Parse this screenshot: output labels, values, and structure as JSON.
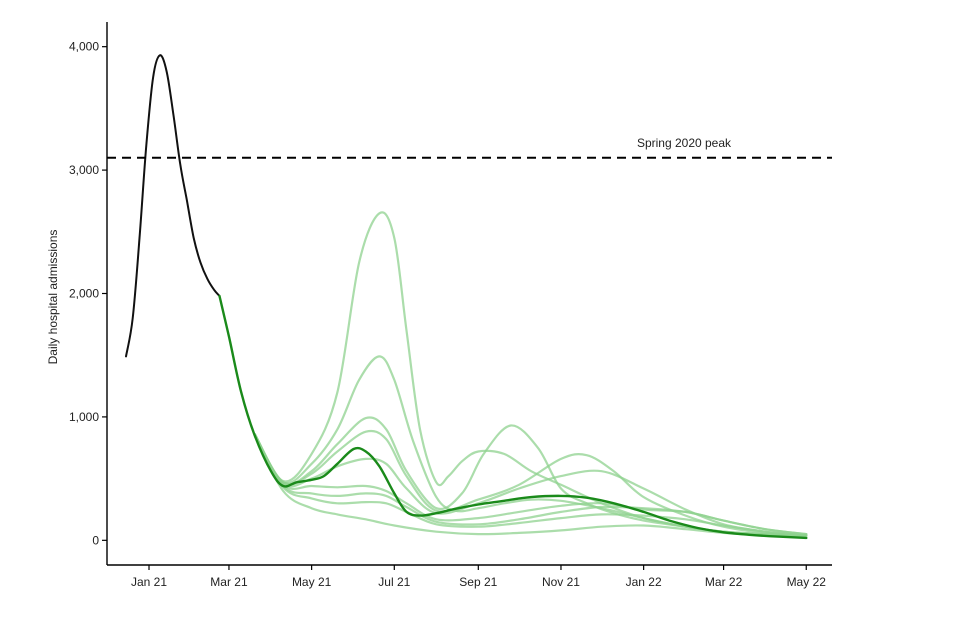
{
  "chart_data": {
    "type": "line",
    "title": "",
    "xlabel": "",
    "ylabel": "Daily hospital admissions",
    "ylim": [
      -200,
      4200
    ],
    "y_ticks": [
      {
        "value": 0,
        "label": "0"
      },
      {
        "value": 1000,
        "label": "1,000"
      },
      {
        "value": 2000,
        "label": "2,000"
      },
      {
        "value": 3000,
        "label": "3,000"
      },
      {
        "value": 4000,
        "label": "4,000"
      }
    ],
    "xlim": [
      "2020-12-01",
      "2022-05-20"
    ],
    "x_ticks": [
      {
        "date": "2021-01-01",
        "label": "Jan 21"
      },
      {
        "date": "2021-03-01",
        "label": "Mar 21"
      },
      {
        "date": "2021-05-01",
        "label": "May 21"
      },
      {
        "date": "2021-07-01",
        "label": "Jul 21"
      },
      {
        "date": "2021-09-01",
        "label": "Sep 21"
      },
      {
        "date": "2021-11-01",
        "label": "Nov 21"
      },
      {
        "date": "2022-01-01",
        "label": "Jan 22"
      },
      {
        "date": "2022-03-01",
        "label": "Mar 22"
      },
      {
        "date": "2022-05-01",
        "label": "May 22"
      }
    ],
    "grid": false,
    "reference_line": {
      "value": 3100,
      "label": "Spring 2020 peak",
      "style": "dashed",
      "color": "#000000"
    },
    "colors": {
      "observed": "#111111",
      "central": "#1a8a1a",
      "scenario": "#8fd18f"
    },
    "series": [
      {
        "role": "observed",
        "x": [
          "2020-12-15",
          "2020-12-20",
          "2020-12-25",
          "2020-12-30",
          "2021-01-04",
          "2021-01-09",
          "2021-01-14",
          "2021-01-19",
          "2021-01-24",
          "2021-01-29",
          "2021-02-03",
          "2021-02-08",
          "2021-02-13",
          "2021-02-18",
          "2021-02-22"
        ],
        "y": [
          1490,
          1800,
          2450,
          3200,
          3750,
          3930,
          3800,
          3450,
          3050,
          2750,
          2450,
          2250,
          2120,
          2030,
          1980
        ]
      },
      {
        "role": "central",
        "x": [
          "2021-02-22",
          "2021-03-01",
          "2021-03-10",
          "2021-03-20",
          "2021-04-01",
          "2021-04-10",
          "2021-04-20",
          "2021-05-01",
          "2021-05-10",
          "2021-05-20",
          "2021-06-01",
          "2021-06-10",
          "2021-06-20",
          "2021-07-01",
          "2021-07-10",
          "2021-07-20",
          "2021-08-01",
          "2021-08-15",
          "2021-09-01",
          "2021-09-20",
          "2021-10-10",
          "2021-11-01",
          "2021-11-20",
          "2021-12-10",
          "2022-01-01",
          "2022-01-20",
          "2022-02-10",
          "2022-03-01",
          "2022-03-20",
          "2022-04-10",
          "2022-05-01"
        ],
        "y": [
          1980,
          1650,
          1200,
          850,
          560,
          440,
          470,
          490,
          520,
          620,
          740,
          720,
          600,
          380,
          230,
          200,
          220,
          255,
          290,
          320,
          350,
          360,
          345,
          300,
          230,
          160,
          100,
          65,
          45,
          30,
          20
        ]
      },
      {
        "role": "scenario",
        "x": [
          "2021-03-20",
          "2021-04-10",
          "2021-05-01",
          "2021-05-20",
          "2021-06-05",
          "2021-06-20",
          "2021-07-01",
          "2021-07-10",
          "2021-07-20",
          "2021-08-01",
          "2021-08-10",
          "2021-08-20",
          "2021-09-01",
          "2021-09-20",
          "2021-10-10",
          "2021-11-01",
          "2021-12-01",
          "2022-01-01",
          "2022-02-01",
          "2022-03-01",
          "2022-04-01",
          "2022-05-01"
        ],
        "y": [
          860,
          480,
          700,
          1200,
          2250,
          2650,
          2450,
          1700,
          900,
          470,
          520,
          640,
          720,
          700,
          560,
          450,
          300,
          180,
          110,
          70,
          50,
          40
        ]
      },
      {
        "role": "scenario",
        "x": [
          "2021-03-20",
          "2021-04-10",
          "2021-05-01",
          "2021-05-20",
          "2021-06-05",
          "2021-06-20",
          "2021-07-01",
          "2021-07-15",
          "2021-08-01",
          "2021-08-15",
          "2021-09-01",
          "2021-09-20",
          "2021-10-10",
          "2021-11-01",
          "2021-12-01",
          "2022-01-01",
          "2022-02-01",
          "2022-03-01",
          "2022-04-01",
          "2022-05-01"
        ],
        "y": [
          860,
          470,
          620,
          900,
          1300,
          1490,
          1300,
          800,
          350,
          240,
          260,
          300,
          330,
          320,
          260,
          180,
          110,
          70,
          50,
          40
        ]
      },
      {
        "role": "scenario",
        "x": [
          "2021-03-20",
          "2021-04-10",
          "2021-05-01",
          "2021-05-20",
          "2021-06-10",
          "2021-06-25",
          "2021-07-10",
          "2021-08-01",
          "2021-08-20",
          "2021-09-05",
          "2021-09-25",
          "2021-10-15",
          "2021-11-01",
          "2021-11-20",
          "2021-12-10",
          "2022-01-01",
          "2022-02-01",
          "2022-03-01",
          "2022-04-01",
          "2022-05-01"
        ],
        "y": [
          860,
          470,
          560,
          780,
          990,
          900,
          560,
          260,
          380,
          700,
          930,
          750,
          420,
          300,
          220,
          160,
          110,
          70,
          50,
          40
        ]
      },
      {
        "role": "scenario",
        "x": [
          "2021-03-20",
          "2021-04-10",
          "2021-05-01",
          "2021-05-20",
          "2021-06-10",
          "2021-06-25",
          "2021-07-10",
          "2021-08-01",
          "2021-09-01",
          "2021-10-01",
          "2021-11-01",
          "2021-11-20",
          "2021-12-10",
          "2022-01-01",
          "2022-02-01",
          "2022-03-01",
          "2022-04-01",
          "2022-05-01"
        ],
        "y": [
          860,
          470,
          540,
          720,
          880,
          820,
          520,
          240,
          330,
          450,
          660,
          690,
          560,
          350,
          200,
          110,
          60,
          40
        ]
      },
      {
        "role": "scenario",
        "x": [
          "2021-03-20",
          "2021-04-10",
          "2021-05-01",
          "2021-05-20",
          "2021-06-10",
          "2021-06-25",
          "2021-07-10",
          "2021-08-01",
          "2021-09-01",
          "2021-10-01",
          "2021-11-01",
          "2021-12-01",
          "2022-01-01",
          "2022-02-01",
          "2022-03-01",
          "2022-04-01",
          "2022-05-01"
        ],
        "y": [
          860,
          460,
          500,
          600,
          660,
          620,
          420,
          220,
          300,
          420,
          520,
          560,
          420,
          250,
          130,
          70,
          40
        ]
      },
      {
        "role": "scenario",
        "x": [
          "2021-03-20",
          "2021-04-10",
          "2021-05-01",
          "2021-05-20",
          "2021-06-10",
          "2021-06-25",
          "2021-07-10",
          "2021-08-01",
          "2021-09-01",
          "2021-10-01",
          "2021-11-01",
          "2021-12-01",
          "2022-01-01",
          "2022-02-01",
          "2022-03-01",
          "2022-04-01",
          "2022-05-01"
        ],
        "y": [
          860,
          450,
          440,
          430,
          440,
          400,
          300,
          170,
          180,
          230,
          280,
          300,
          250,
          230,
          160,
          90,
          50
        ]
      },
      {
        "role": "scenario",
        "x": [
          "2021-03-20",
          "2021-04-10",
          "2021-05-01",
          "2021-05-20",
          "2021-06-10",
          "2021-06-25",
          "2021-07-10",
          "2021-08-01",
          "2021-09-01",
          "2021-10-01",
          "2021-11-01",
          "2021-12-01",
          "2022-01-01",
          "2022-02-01",
          "2022-03-01",
          "2022-04-01",
          "2022-05-01"
        ],
        "y": [
          860,
          440,
          380,
          360,
          380,
          360,
          270,
          150,
          130,
          170,
          230,
          270,
          260,
          230,
          160,
          90,
          50
        ]
      },
      {
        "role": "scenario",
        "x": [
          "2021-03-20",
          "2021-04-10",
          "2021-05-01",
          "2021-05-20",
          "2021-06-10",
          "2021-06-25",
          "2021-07-10",
          "2021-08-01",
          "2021-09-01",
          "2021-10-01",
          "2021-11-01",
          "2021-12-01",
          "2022-01-01",
          "2022-02-01",
          "2022-03-01",
          "2022-04-01",
          "2022-05-01"
        ],
        "y": [
          860,
          430,
          340,
          300,
          310,
          300,
          230,
          130,
          110,
          140,
          180,
          210,
          200,
          170,
          120,
          70,
          40
        ]
      },
      {
        "role": "scenario",
        "x": [
          "2021-03-20",
          "2021-04-10",
          "2021-05-01",
          "2021-05-20",
          "2021-06-10",
          "2021-07-01",
          "2021-08-01",
          "2021-09-01",
          "2021-10-01",
          "2021-11-01",
          "2021-12-01",
          "2022-01-01",
          "2022-02-01",
          "2022-03-01",
          "2022-04-01",
          "2022-05-01"
        ],
        "y": [
          850,
          400,
          260,
          210,
          170,
          120,
          70,
          50,
          60,
          80,
          110,
          120,
          90,
          60,
          40,
          30
        ]
      }
    ]
  }
}
